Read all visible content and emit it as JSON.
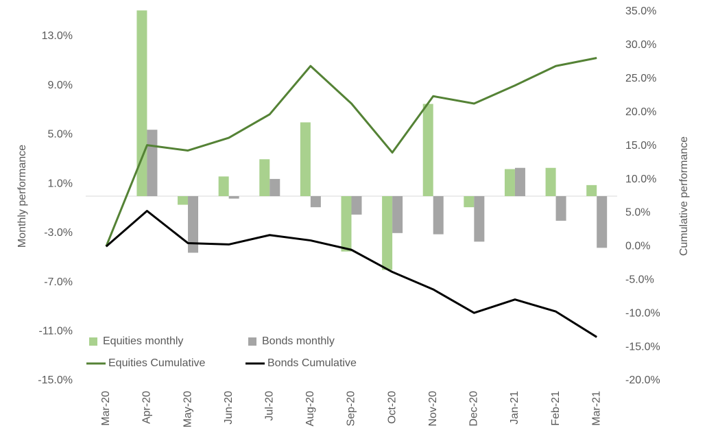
{
  "chart_data": {
    "type": "bar",
    "categories": [
      "Mar-20",
      "Apr-20",
      "May-20",
      "Jun-20",
      "Jul-20",
      "Aug-20",
      "Sep-20",
      "Oct-20",
      "Nov-20",
      "Dec-20",
      "Jan-21",
      "Feb-21",
      "Mar-21"
    ],
    "series": [
      {
        "name": "Equities monthly",
        "type": "bar",
        "color": "#a9d18e",
        "values": [
          null,
          15.1,
          -0.7,
          1.6,
          3.0,
          6.0,
          -4.5,
          -6.0,
          7.5,
          -0.9,
          2.2,
          2.3,
          0.9
        ]
      },
      {
        "name": "Bonds monthly",
        "type": "bar",
        "color": "#a5a5a5",
        "values": [
          null,
          5.4,
          -4.6,
          -0.2,
          1.4,
          -0.9,
          -1.5,
          -3.0,
          -3.1,
          -3.7,
          2.3,
          -2.0,
          -4.2
        ]
      },
      {
        "name": "Equities Cumulative",
        "type": "line",
        "axis": "y2",
        "color": "#548235",
        "values": [
          0,
          15.1,
          14.3,
          16.2,
          19.7,
          26.9,
          21.3,
          14.0,
          22.4,
          21.3,
          24.0,
          26.9,
          28.1
        ]
      },
      {
        "name": "Bonds Cumulative",
        "type": "line",
        "axis": "y2",
        "color": "#000000",
        "values": [
          0,
          5.3,
          0.5,
          0.3,
          1.7,
          0.9,
          -0.5,
          -3.8,
          -6.4,
          -9.9,
          -7.9,
          -9.7,
          -13.5
        ]
      }
    ],
    "ylabel": "Monthly performance",
    "y2label": "Cumulative performance",
    "ylim": [
      -15,
      15
    ],
    "yticks": [
      {
        "value": -15,
        "label": "-15.0%"
      },
      {
        "value": -11,
        "label": "-11.0%"
      },
      {
        "value": -7,
        "label": "-7.0%"
      },
      {
        "value": -3,
        "label": "-3.0%"
      },
      {
        "value": 1,
        "label": "1.0%"
      },
      {
        "value": 5,
        "label": "5.0%"
      },
      {
        "value": 9,
        "label": "9.0%"
      },
      {
        "value": 13,
        "label": "13.0%"
      }
    ],
    "y2lim": [
      -20,
      35
    ],
    "y2ticks": [
      {
        "value": -20,
        "label": "-20.0%"
      },
      {
        "value": -15,
        "label": "-15.0%"
      },
      {
        "value": -10,
        "label": "-10.0%"
      },
      {
        "value": -5,
        "label": "-5.0%"
      },
      {
        "value": 0,
        "label": "0.0%"
      },
      {
        "value": 5,
        "label": "5.0%"
      },
      {
        "value": 10,
        "label": "10.0%"
      },
      {
        "value": 15,
        "label": "15.0%"
      },
      {
        "value": 20,
        "label": "20.0%"
      },
      {
        "value": 25,
        "label": "25.0%"
      },
      {
        "value": 30,
        "label": "30.0%"
      },
      {
        "value": 35,
        "label": "35.0%"
      }
    ],
    "legend": "bottom-left",
    "grid": false
  }
}
